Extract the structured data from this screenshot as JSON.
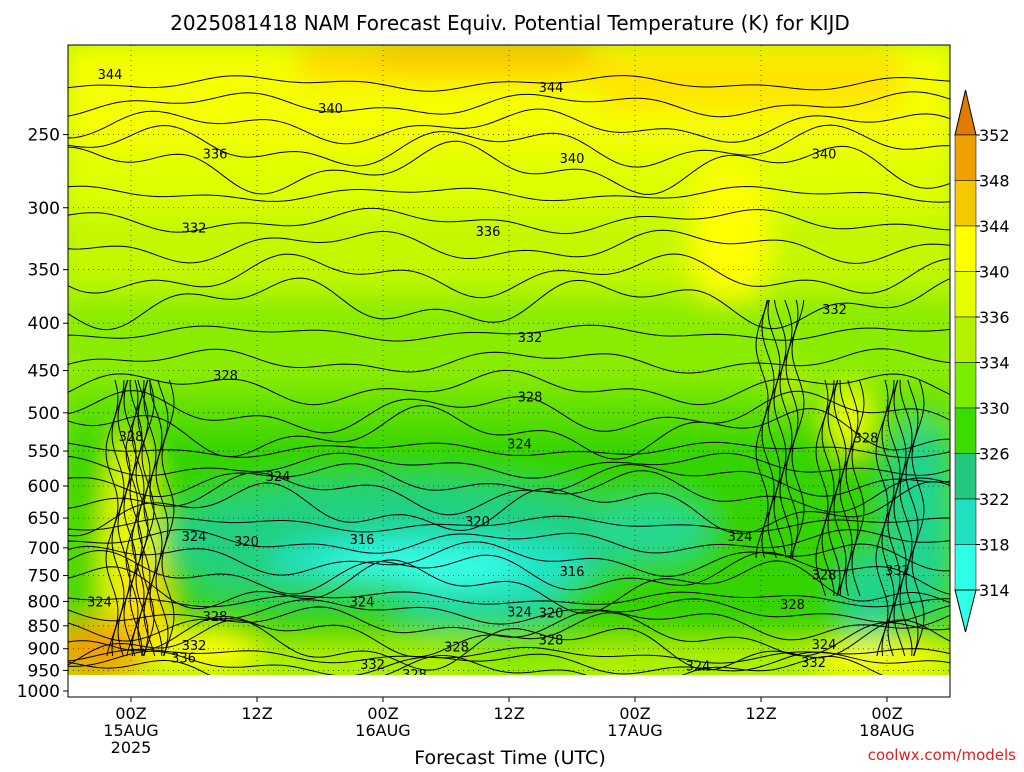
{
  "chart_data": {
    "type": "contour",
    "title": "2025081418 NAM Forecast Equiv. Potential Temperature (K) for KIJD",
    "xlabel": "Forecast Time (UTC)",
    "ylabel": "",
    "watermark": "coolwx.com/models",
    "x_ticks": [
      {
        "hour": 6,
        "label": "00Z",
        "sub": [
          "15AUG",
          "2025"
        ]
      },
      {
        "hour": 18,
        "label": "12Z",
        "sub": []
      },
      {
        "hour": 30,
        "label": "00Z",
        "sub": [
          "16AUG"
        ]
      },
      {
        "hour": 42,
        "label": "12Z",
        "sub": []
      },
      {
        "hour": 54,
        "label": "00Z",
        "sub": [
          "17AUG"
        ]
      },
      {
        "hour": 66,
        "label": "12Z",
        "sub": []
      },
      {
        "hour": 78,
        "label": "00Z",
        "sub": [
          "18AUG"
        ]
      }
    ],
    "x_range_hours": [
      0,
      84
    ],
    "y_axis": "pressure (hPa), log scale, inverted",
    "y_range": [
      1015,
      200
    ],
    "y_ticks": [
      250,
      300,
      350,
      400,
      450,
      500,
      550,
      600,
      650,
      700,
      750,
      800,
      850,
      900,
      950,
      1000
    ],
    "colorbar": {
      "labels": [
        352,
        348,
        344,
        340,
        336,
        334,
        330,
        326,
        322,
        318,
        314
      ],
      "colors": [
        "#e07b00",
        "#f0a000",
        "#f5c800",
        "#ffff00",
        "#e6ff00",
        "#b4f000",
        "#7aec00",
        "#3cdc00",
        "#22c880",
        "#20e0c0",
        "#30ffe8"
      ],
      "extend": "both"
    },
    "contour_labels": [
      {
        "text": "344",
        "x_hour": 4,
        "p": 215
      },
      {
        "text": "344",
        "x_hour": 46,
        "p": 222
      },
      {
        "text": "340",
        "x_hour": 25,
        "p": 234
      },
      {
        "text": "340",
        "x_hour": 48,
        "p": 265
      },
      {
        "text": "340",
        "x_hour": 72,
        "p": 262
      },
      {
        "text": "336",
        "x_hour": 14,
        "p": 262
      },
      {
        "text": "336",
        "x_hour": 40,
        "p": 318
      },
      {
        "text": "332",
        "x_hour": 12,
        "p": 315
      },
      {
        "text": "332",
        "x_hour": 44,
        "p": 414
      },
      {
        "text": "332",
        "x_hour": 73,
        "p": 386
      },
      {
        "text": "328",
        "x_hour": 15,
        "p": 455
      },
      {
        "text": "328",
        "x_hour": 44,
        "p": 480
      },
      {
        "text": "328",
        "x_hour": 6,
        "p": 530
      },
      {
        "text": "328",
        "x_hour": 76,
        "p": 532
      },
      {
        "text": "328",
        "x_hour": 72,
        "p": 748
      },
      {
        "text": "328",
        "x_hour": 69,
        "p": 805
      },
      {
        "text": "328",
        "x_hour": 14,
        "p": 830
      },
      {
        "text": "328",
        "x_hour": 37,
        "p": 895
      },
      {
        "text": "328",
        "x_hour": 46,
        "p": 880
      },
      {
        "text": "328",
        "x_hour": 33,
        "p": 958
      },
      {
        "text": "324",
        "x_hour": 43,
        "p": 540
      },
      {
        "text": "324",
        "x_hour": 20,
        "p": 585
      },
      {
        "text": "324",
        "x_hour": 12,
        "p": 680
      },
      {
        "text": "324",
        "x_hour": 64,
        "p": 680
      },
      {
        "text": "324",
        "x_hour": 3,
        "p": 800
      },
      {
        "text": "324",
        "x_hour": 28,
        "p": 800
      },
      {
        "text": "324",
        "x_hour": 43,
        "p": 820
      },
      {
        "text": "324",
        "x_hour": 72,
        "p": 890
      },
      {
        "text": "324",
        "x_hour": 60,
        "p": 938
      },
      {
        "text": "320",
        "x_hour": 17,
        "p": 688
      },
      {
        "text": "320",
        "x_hour": 39,
        "p": 655
      },
      {
        "text": "320",
        "x_hour": 46,
        "p": 822
      },
      {
        "text": "316",
        "x_hour": 28,
        "p": 685
      },
      {
        "text": "316",
        "x_hour": 48,
        "p": 742
      },
      {
        "text": "336",
        "x_hour": 11,
        "p": 920
      },
      {
        "text": "332",
        "x_hour": 12,
        "p": 892
      },
      {
        "text": "332",
        "x_hour": 29,
        "p": 935
      },
      {
        "text": "332",
        "x_hour": 71,
        "p": 930
      },
      {
        "text": "332",
        "x_hour": 79,
        "p": 740
      }
    ]
  }
}
